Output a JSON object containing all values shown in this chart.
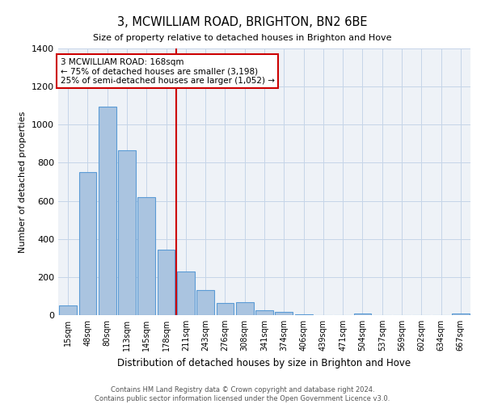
{
  "title": "3, MCWILLIAM ROAD, BRIGHTON, BN2 6BE",
  "subtitle": "Size of property relative to detached houses in Brighton and Hove",
  "xlabel": "Distribution of detached houses by size in Brighton and Hove",
  "ylabel": "Number of detached properties",
  "bin_labels": [
    "15sqm",
    "48sqm",
    "80sqm",
    "113sqm",
    "145sqm",
    "178sqm",
    "211sqm",
    "243sqm",
    "276sqm",
    "308sqm",
    "341sqm",
    "374sqm",
    "406sqm",
    "439sqm",
    "471sqm",
    "504sqm",
    "537sqm",
    "569sqm",
    "602sqm",
    "634sqm",
    "667sqm"
  ],
  "bin_values": [
    50,
    750,
    1095,
    865,
    620,
    345,
    228,
    132,
    65,
    70,
    25,
    18,
    3,
    0,
    0,
    10,
    0,
    0,
    0,
    0,
    10
  ],
  "bar_color": "#aac4e0",
  "bar_edge_color": "#5b9bd5",
  "vline_x": 5.5,
  "vline_color": "#cc0000",
  "ylim": [
    0,
    1400
  ],
  "yticks": [
    0,
    200,
    400,
    600,
    800,
    1000,
    1200,
    1400
  ],
  "annotation_text": "3 MCWILLIAM ROAD: 168sqm\n← 75% of detached houses are smaller (3,198)\n25% of semi-detached houses are larger (1,052) →",
  "annotation_box_color": "#ffffff",
  "annotation_box_edge": "#cc0000",
  "footer_line1": "Contains HM Land Registry data © Crown copyright and database right 2024.",
  "footer_line2": "Contains public sector information licensed under the Open Government Licence v3.0.",
  "bg_color": "#eef2f7"
}
